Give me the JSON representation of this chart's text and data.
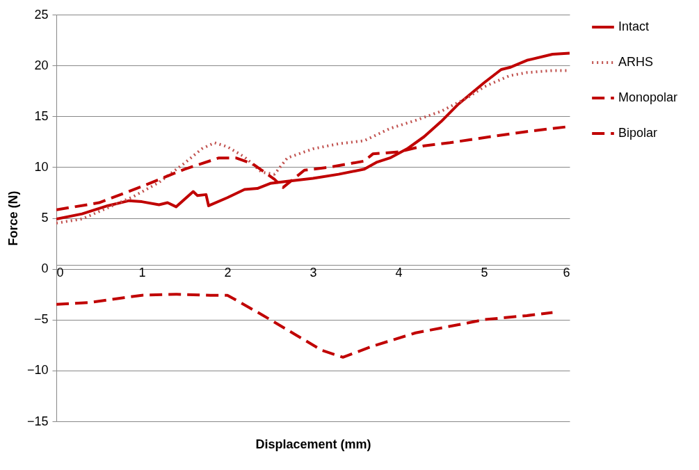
{
  "chart_data": {
    "type": "line",
    "xlabel": "Displacement (mm)",
    "ylabel": "Force (N)",
    "xlim": [
      0,
      6
    ],
    "xticks": [
      0,
      1,
      2,
      3,
      4,
      5,
      6
    ],
    "ylim": [
      -15,
      25
    ],
    "yticks": [
      -15,
      -10,
      -5,
      0,
      5,
      10,
      15,
      20,
      25
    ],
    "grid": "y",
    "legend": "right",
    "series": [
      {
        "name": "Intact",
        "color": "#c00000",
        "line_style": "solid",
        "x": [
          0,
          0.3,
          0.6,
          0.85,
          1.0,
          1.2,
          1.3,
          1.4,
          1.6,
          1.65,
          1.75,
          1.78,
          2.0,
          2.2,
          2.35,
          2.5,
          2.7,
          3.0,
          3.3,
          3.6,
          3.75,
          3.9,
          4.1,
          4.3,
          4.5,
          4.7,
          5.0,
          5.2,
          5.3,
          5.5,
          5.8,
          6.0
        ],
        "values": [
          4.9,
          5.4,
          6.2,
          6.7,
          6.6,
          6.3,
          6.5,
          6.1,
          7.6,
          7.2,
          7.3,
          6.2,
          7.0,
          7.8,
          7.9,
          8.4,
          8.6,
          8.9,
          9.3,
          9.8,
          10.5,
          10.9,
          11.8,
          13.0,
          14.5,
          16.2,
          18.3,
          19.6,
          19.8,
          20.5,
          21.1,
          21.2
        ]
      },
      {
        "name": "ARHS",
        "color": "#c0504d",
        "line_style": "dotted",
        "x": [
          0,
          0.3,
          0.6,
          0.9,
          1.2,
          1.5,
          1.7,
          1.85,
          2.0,
          2.2,
          2.4,
          2.55,
          2.7,
          3.0,
          3.3,
          3.6,
          3.9,
          4.2,
          4.5,
          4.8,
          5.0,
          5.3,
          5.5,
          5.8,
          6.0
        ],
        "values": [
          4.5,
          4.9,
          6.0,
          7.1,
          8.5,
          10.4,
          11.8,
          12.4,
          12.0,
          11.0,
          9.5,
          9.3,
          10.9,
          11.8,
          12.3,
          12.6,
          13.8,
          14.6,
          15.5,
          16.8,
          17.9,
          19.0,
          19.3,
          19.5,
          19.5
        ]
      },
      {
        "name": "Monopolar",
        "color": "#c00000",
        "line_style": "dashed",
        "x": [
          0,
          0.5,
          1.0,
          1.5,
          1.9,
          2.1,
          2.3,
          2.55,
          2.65,
          2.9,
          3.2,
          3.4,
          3.6,
          3.7,
          4.0,
          4.3,
          4.6,
          5.0,
          5.5,
          6.0
        ],
        "values": [
          5.8,
          6.5,
          8.1,
          9.8,
          10.9,
          10.9,
          10.3,
          8.8,
          8.0,
          9.7,
          10.0,
          10.3,
          10.6,
          11.3,
          11.5,
          12.1,
          12.4,
          12.9,
          13.5,
          14.0
        ]
      },
      {
        "name": "Bipolar",
        "color": "#c00000",
        "line_style": "dashed",
        "x": [
          0,
          0.4,
          1.0,
          1.4,
          1.8,
          2.0,
          2.4,
          2.8,
          3.1,
          3.35,
          3.7,
          4.2,
          4.7,
          5.0,
          5.5,
          5.8
        ],
        "values": [
          -3.5,
          -3.3,
          -2.6,
          -2.5,
          -2.6,
          -2.6,
          -4.5,
          -6.5,
          -8.0,
          -8.7,
          -7.6,
          -6.3,
          -5.5,
          -5.0,
          -4.6,
          -4.3
        ]
      }
    ]
  }
}
